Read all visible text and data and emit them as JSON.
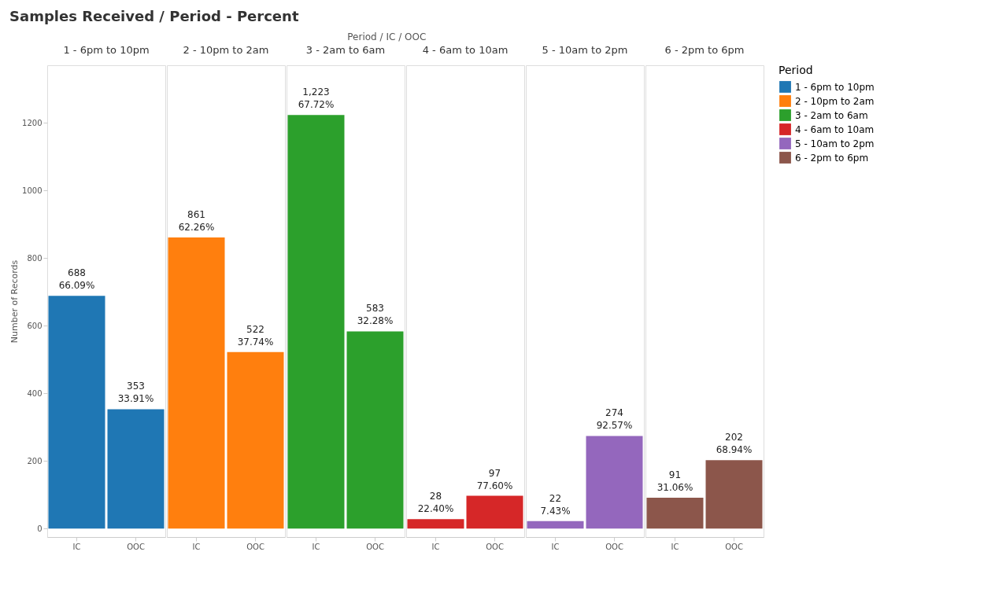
{
  "chart_data": {
    "type": "bar",
    "title": "Samples Received / Period - Percent",
    "xlabel": "Period / IC / OOC",
    "ylabel": "Number of Records",
    "legend_title": "Period",
    "legend": "right",
    "categories": [
      "IC",
      "OOC",
      "IC",
      "OOC",
      "IC",
      "OOC",
      "IC",
      "OOC",
      "IC",
      "OOC",
      "IC",
      "OOC"
    ],
    "ylim": [
      -25,
      1370
    ],
    "yticks": [
      0,
      200,
      400,
      600,
      800,
      {
        "value": 1000,
        "label": "1000"
      },
      {
        "value": 1200,
        "label": "1200"
      }
    ],
    "series": [
      {
        "name": "1 - 6pm to 10pm",
        "color": "#1f77b4",
        "values": [
          688,
          353,
          null,
          null,
          null,
          null,
          null,
          null,
          null,
          null,
          null,
          null
        ],
        "value_labels": [
          "688\n66.09%",
          "353\n33.91%",
          null,
          null,
          null,
          null,
          null,
          null,
          null,
          null,
          null,
          null
        ]
      },
      {
        "name": "2 - 10pm to 2am",
        "color": "#ff7f0e",
        "values": [
          null,
          null,
          861,
          522,
          null,
          null,
          null,
          null,
          null,
          null,
          null,
          null
        ],
        "value_labels": [
          null,
          null,
          "861\n62.26%",
          "522\n37.74%",
          null,
          null,
          null,
          null,
          null,
          null,
          null,
          null
        ]
      },
      {
        "name": "3 - 2am to 6am",
        "color": "#2ca02c",
        "values": [
          null,
          null,
          null,
          null,
          1223,
          583,
          null,
          null,
          null,
          null,
          null,
          null
        ],
        "value_labels": [
          null,
          null,
          null,
          null,
          "1,223\n67.72%",
          "583\n32.28%",
          null,
          null,
          null,
          null,
          null,
          null
        ]
      },
      {
        "name": "4 - 6am to 10am",
        "color": "#d62728",
        "values": [
          null,
          null,
          null,
          null,
          null,
          null,
          28,
          97,
          null,
          null,
          null,
          null
        ],
        "value_labels": [
          null,
          null,
          null,
          null,
          null,
          null,
          "28\n22.40%",
          "97\n77.60%",
          null,
          null,
          null,
          null
        ]
      },
      {
        "name": "5 - 10am to 2pm",
        "color": "#9467bd",
        "values": [
          null,
          null,
          null,
          null,
          null,
          null,
          null,
          null,
          22,
          274,
          null,
          null
        ],
        "value_labels": [
          null,
          null,
          null,
          null,
          null,
          null,
          null,
          null,
          "22\n7.43%",
          "274\n92.57%",
          null,
          null
        ]
      },
      {
        "name": "6 - 2pm to 6pm",
        "color": "#8c564b",
        "values": [
          null,
          null,
          null,
          null,
          null,
          null,
          null,
          null,
          null,
          null,
          91,
          202
        ],
        "value_labels": [
          null,
          null,
          null,
          null,
          null,
          null,
          null,
          null,
          null,
          null,
          "91\n31.06%",
          "202\n68.94%"
        ]
      }
    ]
  }
}
